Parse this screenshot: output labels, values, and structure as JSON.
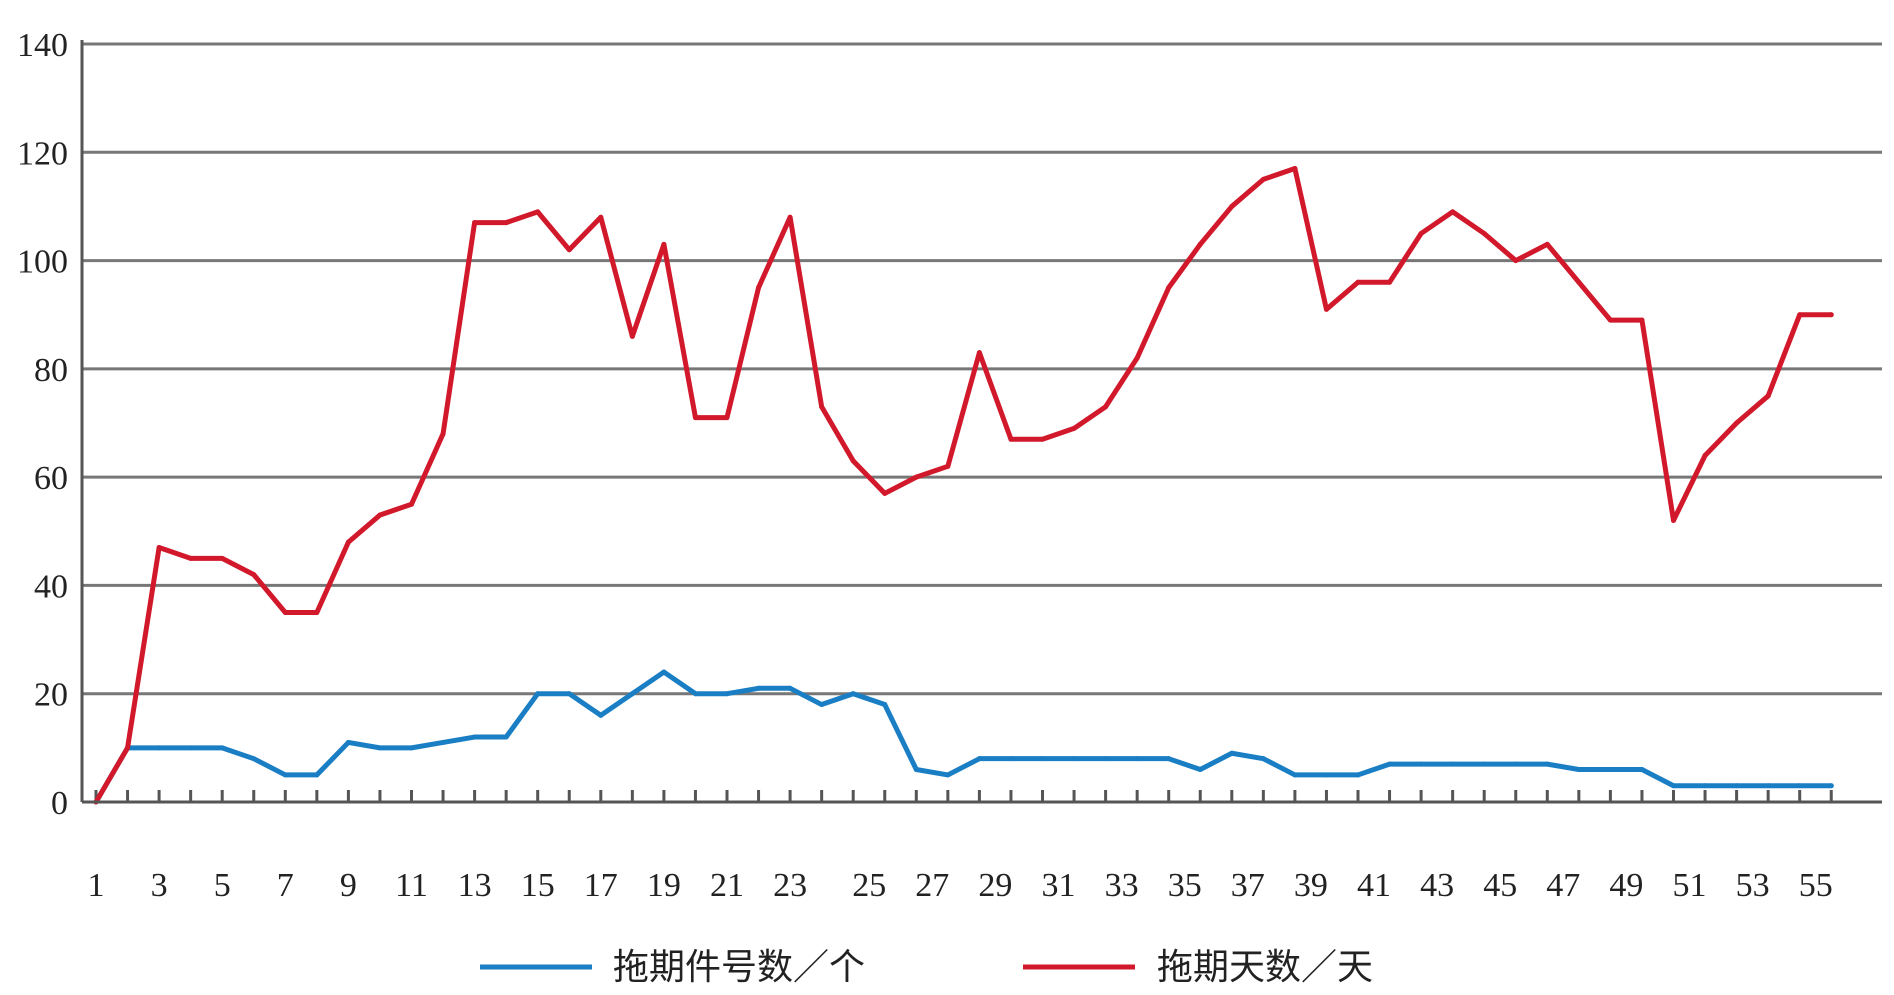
{
  "chart_data": {
    "type": "line",
    "title": "",
    "xlabel": "",
    "ylabel": "",
    "x": [
      1,
      2,
      3,
      4,
      5,
      6,
      7,
      8,
      9,
      10,
      11,
      12,
      13,
      14,
      15,
      16,
      17,
      18,
      19,
      20,
      21,
      22,
      23,
      24,
      25,
      26,
      27,
      28,
      29,
      30,
      31,
      32,
      33,
      34,
      35,
      36,
      37,
      38,
      39,
      40,
      41,
      42,
      43,
      44,
      45,
      46,
      47,
      48,
      49,
      50,
      51,
      52,
      53,
      54,
      55,
      56
    ],
    "x_tick_labels": [
      "1",
      "3",
      "5",
      "7",
      "9",
      "11",
      "13",
      "15",
      "17",
      "19",
      "21",
      "23",
      "25",
      "27",
      "29",
      "31",
      "33",
      "35",
      "37",
      "39",
      "41",
      "43",
      "45",
      "47",
      "49",
      "51",
      "53",
      "55"
    ],
    "ylim": [
      0,
      140
    ],
    "y_ticks": [
      0,
      20,
      40,
      60,
      80,
      100,
      120,
      140
    ],
    "grid": true,
    "legend_position": "bottom",
    "series": [
      {
        "name": "拖期件号数／个",
        "color": "#1a7ec4",
        "values": [
          0,
          10,
          10,
          10,
          10,
          8,
          5,
          5,
          11,
          10,
          10,
          11,
          12,
          12,
          20,
          20,
          16,
          20,
          24,
          20,
          20,
          21,
          21,
          18,
          20,
          18,
          6,
          5,
          8,
          8,
          8,
          8,
          8,
          8,
          8,
          6,
          9,
          8,
          5,
          5,
          5,
          7,
          7,
          7,
          7,
          7,
          7,
          6,
          6,
          6,
          3,
          3,
          3,
          3,
          3,
          3
        ]
      },
      {
        "name": "拖期天数／天",
        "color": "#d2192b",
        "values": [
          0,
          10,
          47,
          45,
          45,
          42,
          35,
          35,
          48,
          53,
          55,
          68,
          107,
          107,
          109,
          102,
          108,
          86,
          103,
          71,
          71,
          95,
          108,
          73,
          63,
          57,
          60,
          62,
          83,
          67,
          67,
          69,
          73,
          82,
          95,
          103,
          110,
          115,
          117,
          91,
          96,
          96,
          105,
          109,
          105,
          100,
          103,
          96,
          89,
          89,
          52,
          64,
          70,
          75,
          90,
          90
        ]
      }
    ]
  }
}
